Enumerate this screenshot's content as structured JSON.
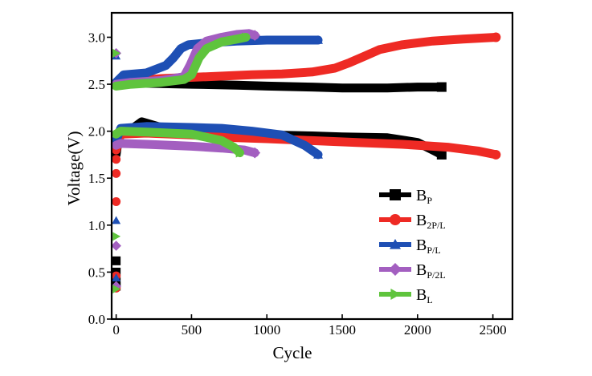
{
  "chart_data": {
    "type": "scatter",
    "xlabel": "Cycle",
    "ylabel": "Voltage(V)",
    "xlim": [
      -30,
      2630
    ],
    "ylim": [
      0,
      3.26
    ],
    "xticks": [
      0,
      500,
      1000,
      1500,
      2000,
      2500
    ],
    "yticks": [
      0.0,
      0.5,
      1.0,
      1.5,
      2.0,
      2.5,
      3.0
    ],
    "xtick_labels": [
      "0",
      "500",
      "1000",
      "1500",
      "2000",
      "2500"
    ],
    "ytick_labels": [
      "0.0",
      "0.5",
      "1.0",
      "1.5",
      "2.0",
      "2.5",
      "3.0"
    ],
    "legend_position": "lower-right",
    "series": [
      {
        "name": "B",
        "sub": "P",
        "color": "#000000",
        "marker": "square",
        "charge": [
          [
            0,
            2.5
          ],
          [
            50,
            2.51
          ],
          [
            200,
            2.51
          ],
          [
            500,
            2.5
          ],
          [
            800,
            2.49
          ],
          [
            1000,
            2.48
          ],
          [
            1300,
            2.47
          ],
          [
            1500,
            2.46
          ],
          [
            1800,
            2.46
          ],
          [
            2000,
            2.47
          ],
          [
            2160,
            2.47
          ]
        ],
        "discharge": [
          [
            0,
            1.75
          ],
          [
            20,
            1.98
          ],
          [
            100,
            2.02
          ],
          [
            170,
            2.1
          ],
          [
            300,
            2.04
          ],
          [
            500,
            2.02
          ],
          [
            800,
            1.98
          ],
          [
            1000,
            1.96
          ],
          [
            1300,
            1.95
          ],
          [
            1500,
            1.94
          ],
          [
            1800,
            1.93
          ],
          [
            2000,
            1.88
          ],
          [
            2100,
            1.8
          ],
          [
            2160,
            1.75
          ]
        ],
        "activation": [
          [
            0,
            0.62
          ],
          [
            0,
            0.5
          ],
          [
            0,
            0.4
          ],
          [
            0,
            0.35
          ]
        ]
      },
      {
        "name": "B",
        "sub": "2P/L",
        "color": "#ee2a24",
        "marker": "circle",
        "charge": [
          [
            0,
            2.5
          ],
          [
            100,
            2.53
          ],
          [
            300,
            2.56
          ],
          [
            600,
            2.58
          ],
          [
            900,
            2.6
          ],
          [
            1100,
            2.61
          ],
          [
            1300,
            2.63
          ],
          [
            1450,
            2.67
          ],
          [
            1550,
            2.73
          ],
          [
            1650,
            2.8
          ],
          [
            1750,
            2.87
          ],
          [
            1900,
            2.92
          ],
          [
            2100,
            2.96
          ],
          [
            2300,
            2.98
          ],
          [
            2520,
            3.0
          ]
        ],
        "discharge": [
          [
            0,
            1.8
          ],
          [
            30,
            1.97
          ],
          [
            200,
            1.98
          ],
          [
            500,
            1.96
          ],
          [
            800,
            1.93
          ],
          [
            1000,
            1.92
          ],
          [
            1300,
            1.9
          ],
          [
            1600,
            1.88
          ],
          [
            1900,
            1.86
          ],
          [
            2200,
            1.83
          ],
          [
            2400,
            1.79
          ],
          [
            2520,
            1.75
          ]
        ],
        "activation": [
          [
            0,
            1.7
          ],
          [
            0,
            1.55
          ],
          [
            0,
            1.25
          ],
          [
            0,
            0.46
          ],
          [
            0,
            0.33
          ]
        ]
      },
      {
        "name": "B",
        "sub": "P/L",
        "color": "#1e4fb4",
        "marker": "triangle-up",
        "charge": [
          [
            0,
            2.52
          ],
          [
            50,
            2.6
          ],
          [
            200,
            2.62
          ],
          [
            330,
            2.7
          ],
          [
            380,
            2.78
          ],
          [
            430,
            2.88
          ],
          [
            480,
            2.92
          ],
          [
            600,
            2.94
          ],
          [
            800,
            2.96
          ],
          [
            1000,
            2.97
          ],
          [
            1200,
            2.97
          ],
          [
            1340,
            2.97
          ]
        ],
        "discharge": [
          [
            0,
            1.9
          ],
          [
            30,
            2.03
          ],
          [
            200,
            2.05
          ],
          [
            500,
            2.04
          ],
          [
            700,
            2.03
          ],
          [
            900,
            2.0
          ],
          [
            1100,
            1.96
          ],
          [
            1250,
            1.85
          ],
          [
            1340,
            1.75
          ]
        ],
        "activation": [
          [
            0,
            2.8
          ],
          [
            0,
            1.05
          ],
          [
            0,
            0.44
          ]
        ]
      },
      {
        "name": "B",
        "sub": "P/2L",
        "color": "#a35fc0",
        "marker": "diamond",
        "charge": [
          [
            0,
            2.5
          ],
          [
            100,
            2.52
          ],
          [
            300,
            2.54
          ],
          [
            450,
            2.58
          ],
          [
            490,
            2.7
          ],
          [
            540,
            2.88
          ],
          [
            600,
            2.96
          ],
          [
            700,
            3.0
          ],
          [
            800,
            3.03
          ],
          [
            880,
            3.04
          ],
          [
            920,
            3.02
          ]
        ],
        "discharge": [
          [
            0,
            1.85
          ],
          [
            30,
            1.87
          ],
          [
            200,
            1.86
          ],
          [
            500,
            1.84
          ],
          [
            700,
            1.82
          ],
          [
            850,
            1.8
          ],
          [
            920,
            1.77
          ]
        ],
        "activation": [
          [
            0,
            2.83
          ],
          [
            0,
            0.78
          ],
          [
            0,
            0.35
          ]
        ]
      },
      {
        "name": "B",
        "sub": "L",
        "color": "#5fc43d",
        "marker": "triangle-right",
        "charge": [
          [
            0,
            2.48
          ],
          [
            100,
            2.5
          ],
          [
            300,
            2.52
          ],
          [
            450,
            2.55
          ],
          [
            500,
            2.6
          ],
          [
            550,
            2.78
          ],
          [
            600,
            2.88
          ],
          [
            700,
            2.95
          ],
          [
            800,
            2.98
          ],
          [
            860,
            3.0
          ]
        ],
        "discharge": [
          [
            0,
            1.97
          ],
          [
            30,
            2.0
          ],
          [
            200,
            1.99
          ],
          [
            500,
            1.97
          ],
          [
            700,
            1.9
          ],
          [
            780,
            1.83
          ],
          [
            820,
            1.77
          ]
        ],
        "activation": [
          [
            0,
            2.83
          ],
          [
            0,
            0.88
          ],
          [
            0,
            0.32
          ]
        ]
      }
    ]
  }
}
